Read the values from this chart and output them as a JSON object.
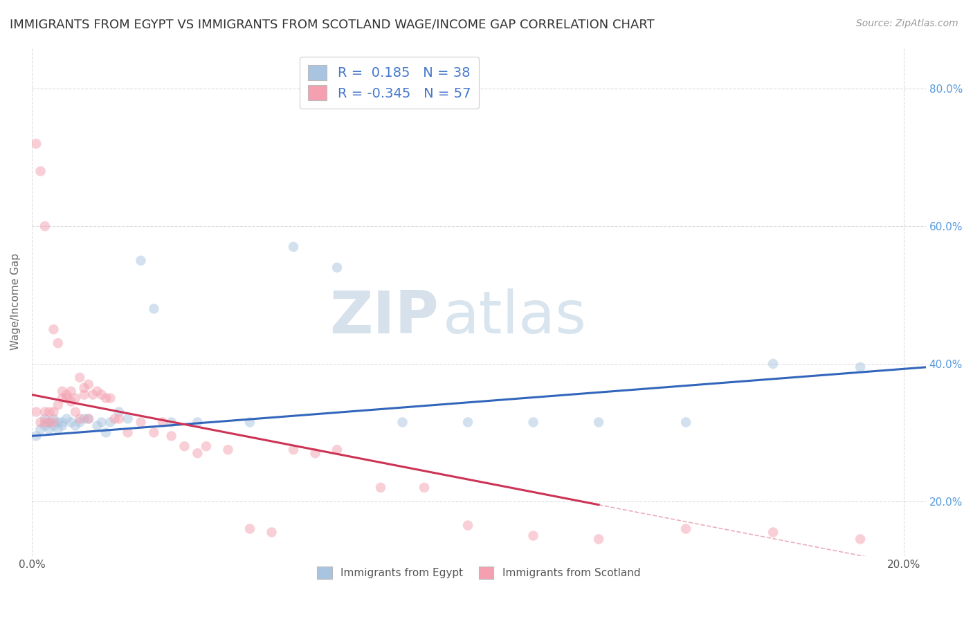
{
  "title": "IMMIGRANTS FROM EGYPT VS IMMIGRANTS FROM SCOTLAND WAGE/INCOME GAP CORRELATION CHART",
  "source": "Source: ZipAtlas.com",
  "ylabel": "Wage/Income Gap",
  "egypt_color": "#a8c4e0",
  "scotland_color": "#f4a0b0",
  "egypt_line_color": "#3366bb",
  "scotland_line_color": "#cc3355",
  "background_color": "#ffffff",
  "grid_color": "#cccccc",
  "R_egypt": 0.185,
  "N_egypt": 38,
  "R_scotland": -0.345,
  "N_scotland": 57,
  "watermark_ZIP": "ZIP",
  "watermark_atlas": "atlas",
  "egypt_scatter_x": [
    0.001,
    0.002,
    0.003,
    0.003,
    0.004,
    0.004,
    0.005,
    0.005,
    0.006,
    0.006,
    0.007,
    0.007,
    0.008,
    0.009,
    0.01,
    0.011,
    0.012,
    0.013,
    0.015,
    0.016,
    0.017,
    0.018,
    0.02,
    0.022,
    0.025,
    0.028,
    0.032,
    0.038,
    0.05,
    0.06,
    0.07,
    0.085,
    0.1,
    0.115,
    0.13,
    0.15,
    0.17,
    0.19
  ],
  "egypt_scatter_y": [
    0.295,
    0.305,
    0.31,
    0.32,
    0.305,
    0.315,
    0.32,
    0.31,
    0.315,
    0.305,
    0.31,
    0.315,
    0.32,
    0.315,
    0.31,
    0.315,
    0.32,
    0.32,
    0.31,
    0.315,
    0.3,
    0.315,
    0.33,
    0.32,
    0.55,
    0.48,
    0.315,
    0.315,
    0.315,
    0.57,
    0.54,
    0.315,
    0.315,
    0.315,
    0.315,
    0.315,
    0.4,
    0.395
  ],
  "scotland_scatter_x": [
    0.001,
    0.001,
    0.002,
    0.002,
    0.003,
    0.003,
    0.003,
    0.004,
    0.004,
    0.005,
    0.005,
    0.005,
    0.006,
    0.006,
    0.007,
    0.007,
    0.008,
    0.008,
    0.009,
    0.009,
    0.01,
    0.01,
    0.011,
    0.011,
    0.012,
    0.012,
    0.013,
    0.013,
    0.014,
    0.015,
    0.016,
    0.017,
    0.018,
    0.019,
    0.02,
    0.022,
    0.025,
    0.028,
    0.03,
    0.032,
    0.035,
    0.038,
    0.04,
    0.045,
    0.05,
    0.055,
    0.06,
    0.065,
    0.07,
    0.08,
    0.09,
    0.1,
    0.115,
    0.13,
    0.15,
    0.17,
    0.19
  ],
  "scotland_scatter_y": [
    0.72,
    0.33,
    0.315,
    0.68,
    0.315,
    0.33,
    0.6,
    0.33,
    0.315,
    0.33,
    0.315,
    0.45,
    0.34,
    0.43,
    0.35,
    0.36,
    0.355,
    0.35,
    0.36,
    0.345,
    0.35,
    0.33,
    0.38,
    0.32,
    0.355,
    0.365,
    0.37,
    0.32,
    0.355,
    0.36,
    0.355,
    0.35,
    0.35,
    0.32,
    0.32,
    0.3,
    0.315,
    0.3,
    0.315,
    0.295,
    0.28,
    0.27,
    0.28,
    0.275,
    0.16,
    0.155,
    0.275,
    0.27,
    0.275,
    0.22,
    0.22,
    0.165,
    0.15,
    0.145,
    0.16,
    0.155,
    0.145
  ],
  "xlim": [
    0.0,
    0.205
  ],
  "ylim": [
    0.12,
    0.86
  ],
  "y_ticks": [
    0.2,
    0.4,
    0.6,
    0.8
  ],
  "x_ticks": [
    0.0,
    0.2
  ],
  "title_fontsize": 13,
  "axis_label_fontsize": 11,
  "tick_fontsize": 11,
  "legend_fontsize": 14,
  "dot_size": 110,
  "dot_alpha": 0.5,
  "egypt_line_x0": 0.0,
  "egypt_line_y0": 0.295,
  "egypt_line_x1": 0.205,
  "egypt_line_y1": 0.395,
  "scotland_line_x0": 0.0,
  "scotland_line_y0": 0.355,
  "scotland_line_x1": 0.13,
  "scotland_line_y1": 0.195
}
